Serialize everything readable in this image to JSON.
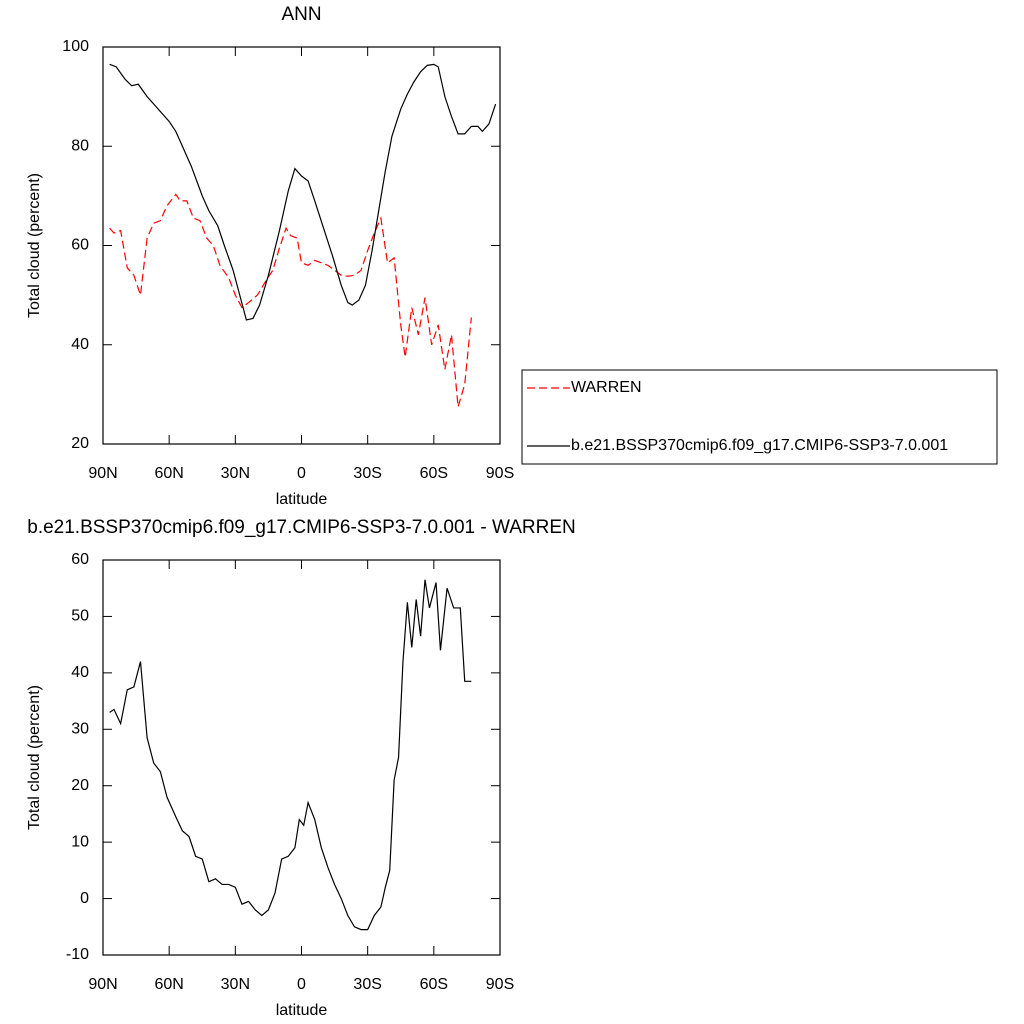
{
  "chart_data": [
    {
      "type": "line",
      "title": "ANN",
      "x_label": "latitude",
      "y_label": "Total cloud (percent)",
      "xlim": [
        90,
        -90
      ],
      "ylim": [
        20,
        100
      ],
      "xticks": [
        {
          "value": 90,
          "label": "90N"
        },
        {
          "value": 60,
          "label": "60N"
        },
        {
          "value": 30,
          "label": "30N"
        },
        0,
        {
          "value": -30,
          "label": "30S"
        },
        {
          "value": -60,
          "label": "60S"
        },
        {
          "value": -90,
          "label": "90S"
        }
      ],
      "yticks": [
        20,
        40,
        60,
        80,
        100
      ],
      "legend": "right",
      "series": [
        {
          "name": "WARREN",
          "color": "#ff0000",
          "dash": true,
          "x": [
            87,
            85,
            82,
            79,
            76,
            73,
            70,
            67,
            64,
            61,
            57,
            55,
            52,
            49,
            46,
            43,
            40,
            37,
            33,
            30,
            27,
            24,
            20,
            16,
            13,
            10,
            7,
            5,
            2,
            0,
            -3,
            -6,
            -9,
            -12,
            -15,
            -18,
            -21,
            -24,
            -27,
            -30,
            -33,
            -36,
            -39,
            -42,
            -45,
            -47,
            -50,
            -53,
            -56,
            -59,
            -62,
            -65,
            -68,
            -71,
            -74,
            -77
          ],
          "values": [
            63.5,
            62.5,
            63,
            55.5,
            54,
            50,
            61.5,
            64.5,
            65,
            68,
            70.3,
            69,
            69,
            65.5,
            65,
            61.5,
            60,
            56,
            53.5,
            50,
            47.5,
            48.5,
            50,
            53,
            55,
            59.5,
            63.5,
            62,
            61.5,
            56.5,
            56,
            57,
            56.5,
            56,
            55,
            54,
            53.8,
            54,
            55,
            59,
            62.5,
            65.5,
            56.5,
            57.5,
            44,
            37.5,
            47.5,
            42,
            49.5,
            40,
            44,
            35,
            42,
            27.5,
            32,
            45.5
          ]
        },
        {
          "name": "b.e21.BSSP370cmip6.f09_g17.CMIP6-SSP3-7.0.001",
          "color": "#000000",
          "dash": false,
          "x": [
            87,
            84,
            80,
            77,
            74,
            70,
            65,
            60,
            57,
            54,
            50,
            45,
            42,
            38,
            35,
            31,
            28,
            25,
            22,
            19,
            15,
            10,
            6,
            3,
            0,
            -3,
            -6,
            -10,
            -14,
            -18,
            -21,
            -23,
            -26,
            -29,
            -32,
            -35,
            -38,
            -41,
            -45,
            -48,
            -51,
            -54,
            -57,
            -60,
            -62,
            -65,
            -68,
            -71,
            -74,
            -77,
            -80,
            -82,
            -85,
            -88
          ],
          "values": [
            96.5,
            96,
            93.5,
            92.2,
            92.5,
            90,
            87.5,
            85,
            83,
            80,
            76,
            70,
            67,
            64,
            60,
            55,
            50,
            45,
            45.3,
            48,
            54,
            63,
            71,
            75.5,
            74,
            73,
            69,
            63.5,
            58,
            52,
            48.5,
            48,
            49,
            52,
            59,
            67,
            75,
            82,
            87.5,
            90.5,
            93,
            95,
            96.3,
            96.5,
            96,
            90,
            86,
            82.5,
            82.5,
            84,
            84,
            83,
            84.5,
            88.5
          ]
        }
      ]
    },
    {
      "type": "line",
      "title": "b.e21.BSSP370cmip6.f09_g17.CMIP6-SSP3-7.0.001 - WARREN",
      "x_label": "latitude",
      "y_label": "Total cloud (percent)",
      "xlim": [
        90,
        -90
      ],
      "ylim": [
        -10,
        60
      ],
      "xticks": [
        {
          "value": 90,
          "label": "90N"
        },
        {
          "value": 60,
          "label": "60N"
        },
        {
          "value": 30,
          "label": "30N"
        },
        0,
        {
          "value": -30,
          "label": "30S"
        },
        {
          "value": -60,
          "label": "60S"
        },
        {
          "value": -90,
          "label": "90S"
        }
      ],
      "yticks": [
        -10,
        0,
        10,
        20,
        30,
        40,
        50,
        60
      ],
      "series": [
        {
          "color": "#000000",
          "dash": false,
          "x": [
            87,
            85,
            82,
            79,
            76,
            73,
            70,
            67,
            64,
            61,
            57,
            54,
            51,
            48,
            45,
            42,
            39,
            36,
            33,
            30,
            27,
            24,
            21,
            18,
            15,
            12,
            9,
            6,
            3,
            1,
            -1,
            -3,
            -6,
            -9,
            -12,
            -15,
            -18,
            -21,
            -24,
            -27,
            -30,
            -33,
            -36,
            -38,
            -40,
            -42,
            -44,
            -46,
            -48,
            -50,
            -52,
            -54,
            -56,
            -58,
            -61,
            -63,
            -66,
            -69,
            -72,
            -74,
            -77
          ],
          "values": [
            33,
            33.5,
            31,
            37,
            37.5,
            42,
            28.5,
            24,
            22.5,
            18,
            14.5,
            12,
            11,
            7.5,
            7,
            3,
            3.5,
            2.5,
            2.5,
            2,
            -1,
            -0.5,
            -2,
            -3,
            -2,
            1,
            7,
            7.5,
            9,
            14,
            13,
            17,
            14,
            9,
            5.5,
            2.5,
            0,
            -3,
            -5,
            -5.5,
            -5.5,
            -3,
            -1.5,
            2,
            5,
            21,
            25,
            42,
            52.5,
            44.5,
            53,
            46.5,
            56.5,
            51.5,
            56,
            44,
            55,
            51.5,
            51.5,
            38.5,
            38.5
          ]
        }
      ]
    }
  ]
}
